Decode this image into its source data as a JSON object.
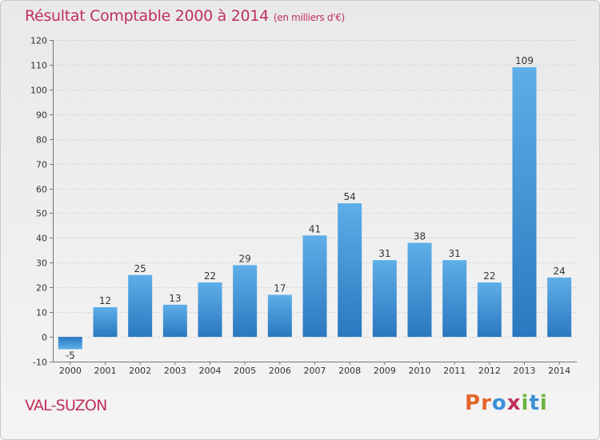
{
  "title": "Résultat Comptable 2000 à 2014",
  "subtitle": "(en milliers d'€)",
  "commune": "VAL-SUZON",
  "brand": {
    "letters": [
      "P",
      "r",
      "o",
      "x",
      "i",
      "t",
      "i"
    ],
    "colors": [
      "#e3652b",
      "#e3652b",
      "#3a8fd6",
      "#c0305a",
      "#6cb33f",
      "#3a8fd6",
      "#6cb33f"
    ]
  },
  "chart_data": {
    "type": "bar",
    "categories": [
      "2000",
      "2001",
      "2002",
      "2003",
      "2004",
      "2005",
      "2006",
      "2007",
      "2008",
      "2009",
      "2010",
      "2011",
      "2012",
      "2013",
      "2014"
    ],
    "values": [
      -5,
      12,
      25,
      13,
      22,
      29,
      17,
      41,
      54,
      31,
      38,
      31,
      22,
      109,
      24
    ],
    "ylim": [
      -10,
      120
    ],
    "yticks": [
      -10,
      0,
      10,
      20,
      30,
      40,
      50,
      60,
      70,
      80,
      90,
      100,
      110,
      120
    ],
    "grid": true,
    "bar_color": "#3d8fd2"
  }
}
